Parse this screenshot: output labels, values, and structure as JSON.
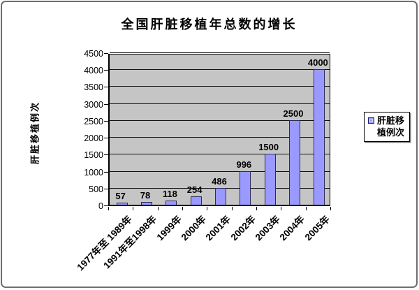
{
  "chart_data": {
    "type": "bar",
    "title": "全国肝脏移植年总数的增长",
    "categories": [
      "1977年至 1989年",
      "1991年至1998年",
      "1999年",
      "2000年",
      "2001年",
      "2002年",
      "2003年",
      "2004年",
      "2005年"
    ],
    "values": [
      57,
      78,
      118,
      254,
      486,
      996,
      1500,
      2500,
      4000
    ],
    "xlabel": "",
    "ylabel": "肝脏移植例次",
    "ylim": [
      0,
      4500
    ],
    "ytick_step": 500,
    "yticks": [
      0,
      500,
      1000,
      1500,
      2000,
      2500,
      3000,
      3500,
      4000,
      4500
    ],
    "grid": true,
    "data_labels": true,
    "legend_position": "right",
    "legend_entries": [
      "肝脏移植例次"
    ],
    "colors": {
      "bar_fill": "#9999ff",
      "bar_border": "#2a2a5e",
      "plot_background": "#c5c5c5",
      "gridline": "#111111",
      "axis": "#000000",
      "text": "#000000",
      "legend_background": "#ffffff"
    }
  }
}
